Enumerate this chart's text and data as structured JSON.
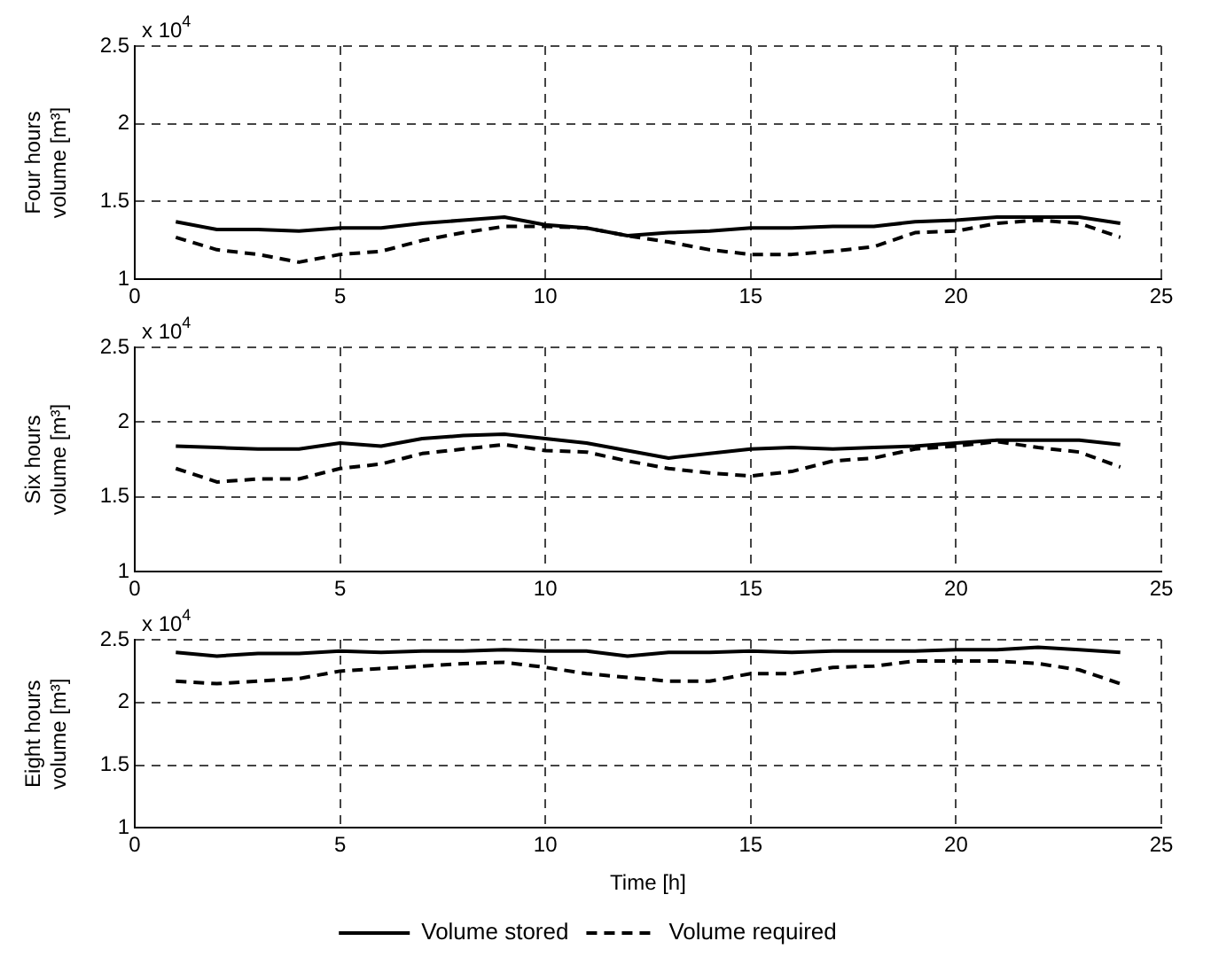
{
  "chart_data": [
    {
      "type": "line",
      "ylabel": "Four hours\nvolume [m³]",
      "annotations": [
        "x 10$^{4}$"
      ],
      "x": [
        1,
        2,
        3,
        4,
        5,
        6,
        7,
        8,
        9,
        10,
        11,
        12,
        13,
        14,
        15,
        16,
        17,
        18,
        19,
        20,
        21,
        22,
        23,
        24
      ],
      "xlim": [
        0,
        25
      ],
      "xticks": [
        0,
        5,
        10,
        15,
        20,
        25
      ],
      "ylim": [
        1,
        2.5
      ],
      "yticks": [
        1,
        1.5,
        2,
        2.5
      ],
      "grid": true,
      "marker": "none",
      "series": [
        {
          "color": "#000000",
          "line_style": "solid",
          "values": [
            1.37,
            1.32,
            1.32,
            1.31,
            1.33,
            1.33,
            1.36,
            1.38,
            1.4,
            1.35,
            1.33,
            1.28,
            1.3,
            1.31,
            1.33,
            1.33,
            1.34,
            1.34,
            1.37,
            1.38,
            1.4,
            1.4,
            1.4,
            1.36
          ]
        },
        {
          "color": "#000000",
          "line_style": "dashed",
          "values": [
            1.27,
            1.19,
            1.16,
            1.11,
            1.16,
            1.18,
            1.25,
            1.3,
            1.34,
            1.34,
            1.33,
            1.28,
            1.24,
            1.19,
            1.16,
            1.16,
            1.18,
            1.21,
            1.3,
            1.31,
            1.36,
            1.38,
            1.36,
            1.27
          ]
        }
      ]
    },
    {
      "type": "line",
      "ylabel": "Six hours\nvolume [m³]",
      "annotations": [
        "x 10$^{4}$"
      ],
      "x": [
        1,
        2,
        3,
        4,
        5,
        6,
        7,
        8,
        9,
        10,
        11,
        12,
        13,
        14,
        15,
        16,
        17,
        18,
        19,
        20,
        21,
        22,
        23,
        24
      ],
      "xlim": [
        0,
        25
      ],
      "xticks": [
        0,
        5,
        10,
        15,
        20,
        25
      ],
      "ylim": [
        1,
        2.5
      ],
      "yticks": [
        1,
        1.5,
        2,
        2.5
      ],
      "grid": true,
      "marker": "none",
      "series": [
        {
          "color": "#000000",
          "line_style": "solid",
          "values": [
            1.84,
            1.83,
            1.82,
            1.82,
            1.86,
            1.84,
            1.89,
            1.91,
            1.92,
            1.89,
            1.86,
            1.81,
            1.76,
            1.79,
            1.82,
            1.83,
            1.82,
            1.83,
            1.84,
            1.86,
            1.88,
            1.88,
            1.88,
            1.85
          ]
        },
        {
          "color": "#000000",
          "line_style": "dashed",
          "values": [
            1.69,
            1.6,
            1.62,
            1.62,
            1.69,
            1.72,
            1.79,
            1.82,
            1.85,
            1.81,
            1.8,
            1.74,
            1.69,
            1.66,
            1.64,
            1.67,
            1.74,
            1.76,
            1.82,
            1.84,
            1.87,
            1.83,
            1.8,
            1.7
          ]
        }
      ]
    },
    {
      "type": "line",
      "ylabel": "Eight hours\nvolume [m³]",
      "xlabel": "Time [h]",
      "annotations": [
        "x 10$^{4}$"
      ],
      "x": [
        1,
        2,
        3,
        4,
        5,
        6,
        7,
        8,
        9,
        10,
        11,
        12,
        13,
        14,
        15,
        16,
        17,
        18,
        19,
        20,
        21,
        22,
        23,
        24
      ],
      "xlim": [
        0,
        25
      ],
      "xticks": [
        0,
        5,
        10,
        15,
        20,
        25
      ],
      "ylim": [
        1,
        2.5
      ],
      "yticks": [
        1,
        1.5,
        2,
        2.5
      ],
      "grid": true,
      "marker": "none",
      "legend": "bottom",
      "series": [
        {
          "name": "Volume stored",
          "color": "#000000",
          "line_style": "solid",
          "values": [
            2.4,
            2.37,
            2.39,
            2.39,
            2.41,
            2.4,
            2.41,
            2.41,
            2.42,
            2.41,
            2.41,
            2.37,
            2.4,
            2.4,
            2.41,
            2.4,
            2.41,
            2.41,
            2.41,
            2.42,
            2.42,
            2.44,
            2.42,
            2.4
          ]
        },
        {
          "name": "Volume required",
          "color": "#000000",
          "line_style": "dashed",
          "values": [
            2.17,
            2.15,
            2.17,
            2.19,
            2.25,
            2.27,
            2.29,
            2.31,
            2.32,
            2.28,
            2.23,
            2.2,
            2.17,
            2.17,
            2.23,
            2.23,
            2.28,
            2.29,
            2.33,
            2.33,
            2.33,
            2.31,
            2.26,
            2.15
          ]
        }
      ]
    }
  ]
}
